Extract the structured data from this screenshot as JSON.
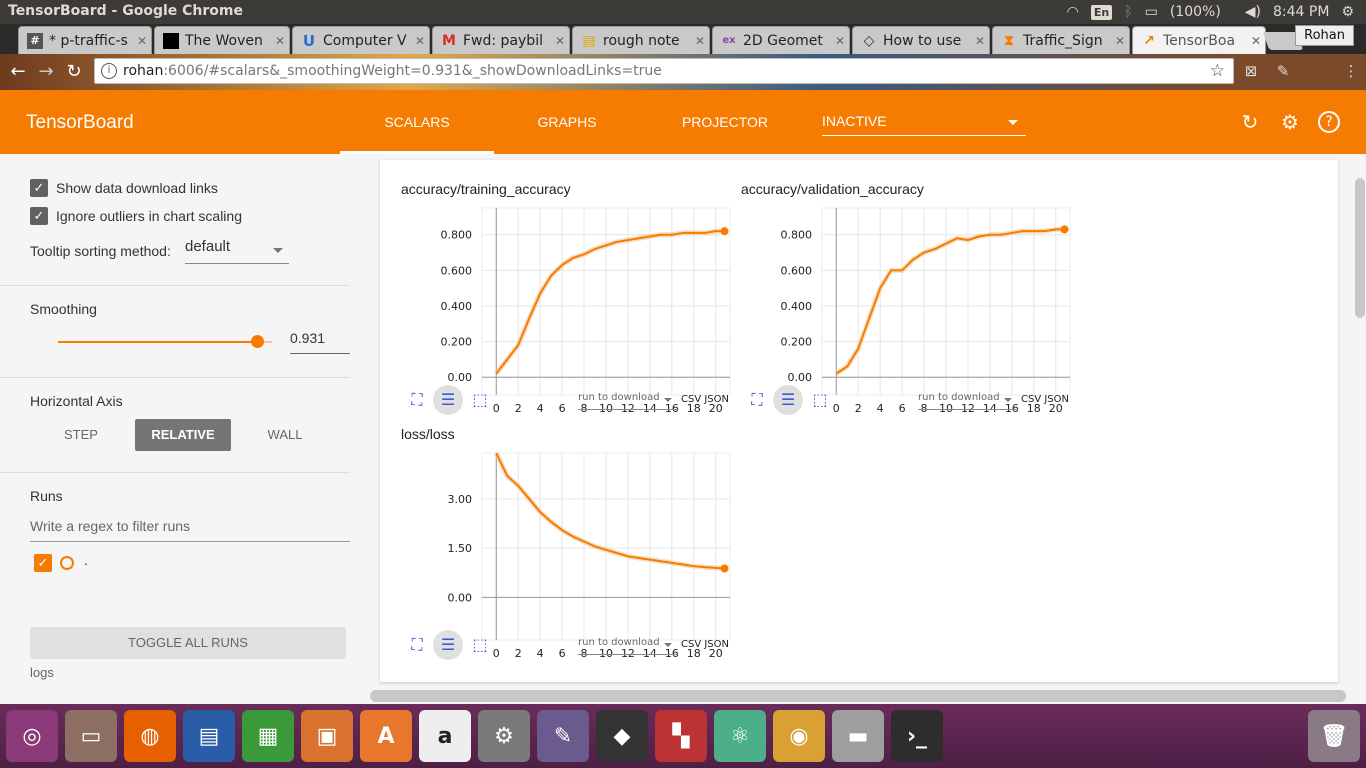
{
  "system": {
    "window_title": "TensorBoard - Google Chrome",
    "keyboard": "En",
    "battery": "(100%)",
    "time": "8:44 PM"
  },
  "browser": {
    "tabs": [
      {
        "label": "* p-traffic-s",
        "fav": "#",
        "favbg": "#555555"
      },
      {
        "label": "The Woven",
        "fav": "",
        "favbg": "#000000"
      },
      {
        "label": "Computer V",
        "fav": "U",
        "favbg": "#2b6cd4"
      },
      {
        "label": "Fwd: paybil",
        "fav": "M",
        "favbg": "#ffffff"
      },
      {
        "label": "rough note",
        "fav": "▤",
        "favbg": "#e6a400"
      },
      {
        "label": "2D Geomet",
        "fav": "ex",
        "favbg": "#ffffff"
      },
      {
        "label": "How to use",
        "fav": "◇",
        "favbg": "#ffffff"
      },
      {
        "label": "Traffic_Sign",
        "fav": "⧗",
        "favbg": "#ffffff"
      },
      {
        "label": "TensorBoa",
        "fav": "↗",
        "favbg": "#f57c00"
      }
    ],
    "profile": "Rohan",
    "url_host": "rohan",
    "url_path": ":6006/#scalars&_smoothingWeight=0.931&_showDownloadLinks=true"
  },
  "header": {
    "logo": "TensorBoard",
    "tabs": [
      "SCALARS",
      "GRAPHS",
      "PROJECTOR"
    ],
    "inactive_label": "INACTIVE"
  },
  "sidebar": {
    "show_download": "Show data download links",
    "ignore_outliers": "Ignore outliers in chart scaling",
    "tooltip_label": "Tooltip sorting method:",
    "tooltip_value": "default",
    "smoothing_label": "Smoothing",
    "smoothing_value": "0.931",
    "smoothing_fraction": 0.931,
    "horizontal_axis_label": "Horizontal Axis",
    "axis_buttons": [
      "STEP",
      "RELATIVE",
      "WALL"
    ],
    "runs_label": "Runs",
    "runs_filter_placeholder": "Write a regex to filter runs",
    "run_name": ".",
    "toggle_all": "TOGGLE ALL RUNS",
    "logs": "logs"
  },
  "charts": {
    "download_placeholder": "run to download",
    "csv": "CSV",
    "json": "JSON"
  },
  "accent": "#f57c00",
  "chart_data": [
    {
      "type": "line",
      "title": "accuracy/training_accuracy",
      "xlim": [
        -1.3,
        21.3
      ],
      "ylim": [
        -0.1,
        0.95
      ],
      "xticks": [
        0,
        2,
        4,
        6,
        8,
        10,
        12,
        14,
        16,
        18,
        20
      ],
      "yticks": [
        0.0,
        0.2,
        0.4,
        0.6,
        0.8
      ],
      "ytick_labels": [
        "0.00",
        "0.200",
        "0.400",
        "0.600",
        "0.800"
      ],
      "series": [
        {
          "x": [
            0,
            1,
            2,
            3,
            4,
            5,
            6,
            7,
            8,
            9,
            10,
            11,
            12,
            13,
            14,
            15,
            16,
            17,
            18,
            19,
            20,
            20.8
          ],
          "values": [
            0.02,
            0.1,
            0.18,
            0.33,
            0.47,
            0.57,
            0.63,
            0.67,
            0.69,
            0.72,
            0.74,
            0.76,
            0.77,
            0.78,
            0.79,
            0.8,
            0.8,
            0.81,
            0.81,
            0.81,
            0.82,
            0.82
          ]
        }
      ]
    },
    {
      "type": "line",
      "title": "accuracy/validation_accuracy",
      "xlim": [
        -1.3,
        21.3
      ],
      "ylim": [
        -0.1,
        0.95
      ],
      "xticks": [
        0,
        2,
        4,
        6,
        8,
        10,
        12,
        14,
        16,
        18,
        20
      ],
      "yticks": [
        0.0,
        0.2,
        0.4,
        0.6,
        0.8
      ],
      "ytick_labels": [
        "0.00",
        "0.200",
        "0.400",
        "0.600",
        "0.800"
      ],
      "series": [
        {
          "x": [
            0,
            1,
            2,
            3,
            4,
            5,
            6,
            7,
            8,
            9,
            10,
            11,
            12,
            13,
            14,
            15,
            16,
            17,
            18,
            19,
            20,
            20.8
          ],
          "values": [
            0.02,
            0.06,
            0.16,
            0.33,
            0.5,
            0.6,
            0.6,
            0.66,
            0.7,
            0.72,
            0.75,
            0.78,
            0.77,
            0.79,
            0.8,
            0.8,
            0.81,
            0.82,
            0.82,
            0.82,
            0.83,
            0.83
          ]
        }
      ]
    },
    {
      "type": "line",
      "title": "loss/loss",
      "xlim": [
        -1.3,
        21.3
      ],
      "ylim": [
        -1.3,
        4.4
      ],
      "xticks": [
        0,
        2,
        4,
        6,
        8,
        10,
        12,
        14,
        16,
        18,
        20
      ],
      "yticks": [
        0.0,
        1.5,
        3.0
      ],
      "ytick_labels": [
        "0.00",
        "1.50",
        "3.00"
      ],
      "series": [
        {
          "x": [
            0,
            1,
            2,
            3,
            4,
            5,
            6,
            7,
            8,
            9,
            10,
            11,
            12,
            13,
            14,
            15,
            16,
            17,
            18,
            19,
            20,
            20.8
          ],
          "values": [
            4.4,
            3.7,
            3.4,
            3.0,
            2.6,
            2.3,
            2.05,
            1.85,
            1.7,
            1.55,
            1.45,
            1.35,
            1.25,
            1.2,
            1.15,
            1.1,
            1.05,
            1.0,
            0.95,
            0.92,
            0.9,
            0.88
          ]
        }
      ]
    }
  ]
}
